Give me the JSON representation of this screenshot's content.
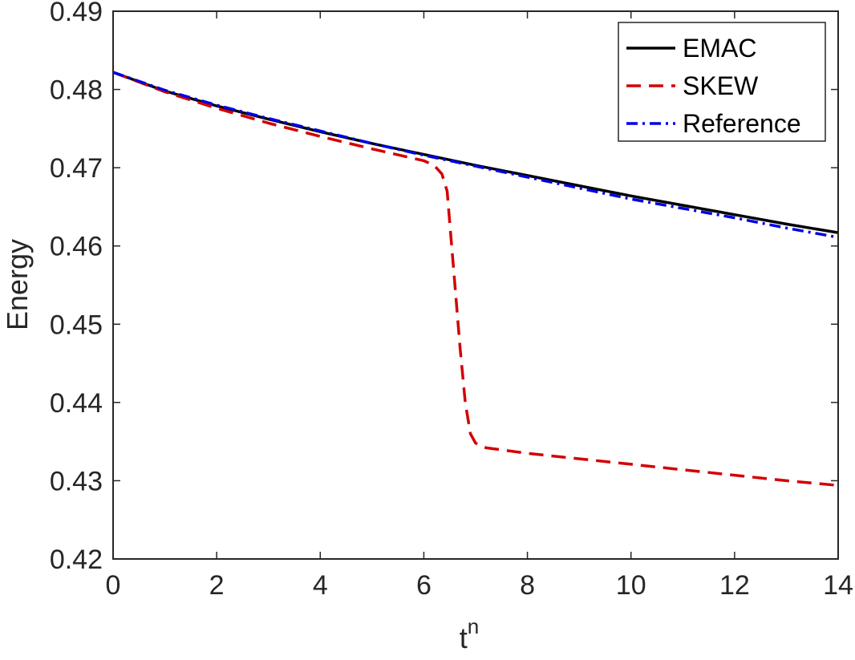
{
  "chart_data": {
    "type": "line",
    "xlabel": "t",
    "xlabel_superscript": "n",
    "ylabel": "Energy",
    "xlim": [
      0,
      14
    ],
    "ylim": [
      0.42,
      0.49
    ],
    "xticks": [
      0,
      2,
      4,
      6,
      8,
      10,
      12,
      14
    ],
    "yticks": [
      0.42,
      0.43,
      0.44,
      0.45,
      0.46,
      0.47,
      0.48,
      0.49
    ],
    "xtick_labels": [
      "0",
      "2",
      "4",
      "6",
      "8",
      "10",
      "12",
      "14"
    ],
    "ytick_labels": [
      "0.42",
      "0.43",
      "0.44",
      "0.45",
      "0.46",
      "0.47",
      "0.48",
      "0.49"
    ],
    "grid": false,
    "legend_position": "top-right",
    "series": [
      {
        "name": "EMAC",
        "color": "#000000",
        "dash": "solid",
        "x": [
          0,
          1,
          2,
          3,
          4,
          5,
          6,
          7,
          8,
          9,
          10,
          11,
          12,
          13,
          14
        ],
        "y": [
          0.4822,
          0.4798,
          0.4779,
          0.4762,
          0.4746,
          0.4731,
          0.4717,
          0.4703,
          0.469,
          0.4677,
          0.4664,
          0.4652,
          0.464,
          0.4628,
          0.4617
        ]
      },
      {
        "name": "SKEW",
        "color": "#d40000",
        "dash": "dashed",
        "x": [
          0,
          1,
          2,
          3,
          4,
          5,
          6,
          6.2,
          6.35,
          6.45,
          6.5,
          6.6,
          6.7,
          6.8,
          6.9,
          7.0,
          7.2,
          8,
          9,
          10,
          11,
          12,
          13,
          14
        ],
        "y": [
          0.4822,
          0.4797,
          0.4776,
          0.4757,
          0.474,
          0.4724,
          0.4709,
          0.4703,
          0.4692,
          0.467,
          0.463,
          0.455,
          0.447,
          0.44,
          0.436,
          0.4348,
          0.4342,
          0.4335,
          0.4328,
          0.4321,
          0.4314,
          0.4307,
          0.43,
          0.4294
        ]
      },
      {
        "name": "Reference",
        "color": "#0000e6",
        "dash": "dashdot",
        "x": [
          0,
          1,
          2,
          3,
          4,
          5,
          6,
          7,
          8,
          9,
          10,
          11,
          12,
          13,
          14
        ],
        "y": [
          0.4822,
          0.4799,
          0.478,
          0.4763,
          0.4747,
          0.4731,
          0.4716,
          0.4702,
          0.4688,
          0.4674,
          0.466,
          0.4648,
          0.4636,
          0.4623,
          0.4611
        ]
      }
    ]
  }
}
